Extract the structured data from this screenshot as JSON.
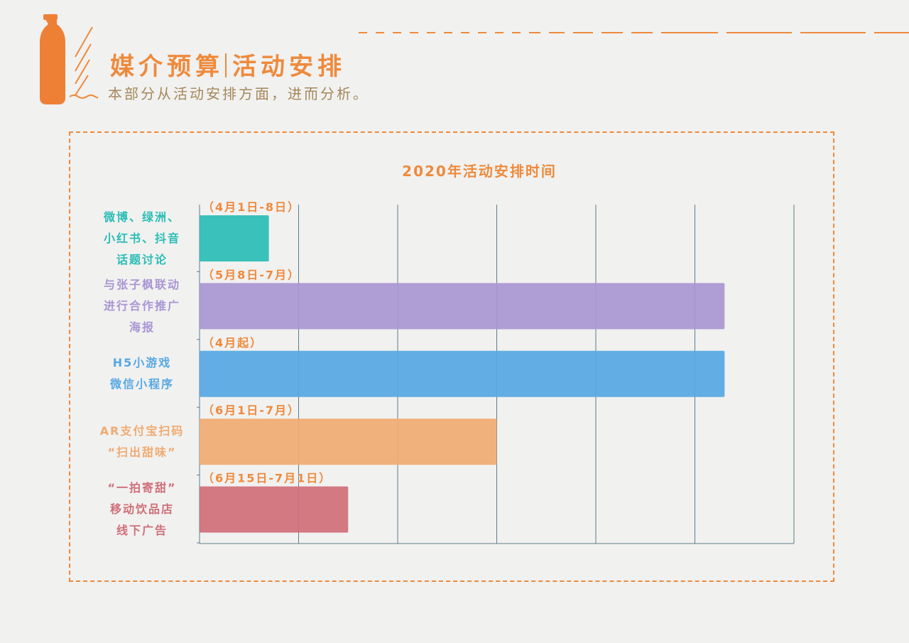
{
  "header": {
    "title_part1": "媒介预算",
    "title_part2": "活动安排",
    "subtitle": "本部分从活动安排方面，进而分析。"
  },
  "colors": {
    "accent": "#ee8a3c",
    "subtitle": "#a5875a",
    "grid": "#5b7f87"
  },
  "chart_data": {
    "type": "bar",
    "orientation": "horizontal",
    "title": "2020年活动安排时间",
    "x_range": [
      0,
      6
    ],
    "grid": true,
    "categories": [
      {
        "lines": [
          "微博、绿洲、",
          "小红书、抖音",
          "话题讨论"
        ],
        "label": "（4月1日-8日）",
        "start": 0,
        "end": 0.7,
        "color": "#2bbdb6"
      },
      {
        "lines": [
          "与张子枫联动",
          "进行合作推广",
          "海报"
        ],
        "label": "（5月8日-7月）",
        "start": 0,
        "end": 5.3,
        "color": "#a996d3"
      },
      {
        "lines": [
          "H5小游戏",
          "微信小程序"
        ],
        "label": "（4月起）",
        "start": 0,
        "end": 5.3,
        "color": "#56a8e3"
      },
      {
        "lines": [
          "AR支付宝扫码",
          "“扫出甜味”"
        ],
        "label": "（6月1日-7月）",
        "start": 0,
        "end": 3.0,
        "color": "#f0ab72"
      },
      {
        "lines": [
          "“一拍寄甜”",
          "移动饮品店",
          "线下广告"
        ],
        "label": "（6月15日-7月1日）",
        "start": 0,
        "end": 1.5,
        "color": "#cf6f78"
      }
    ]
  }
}
